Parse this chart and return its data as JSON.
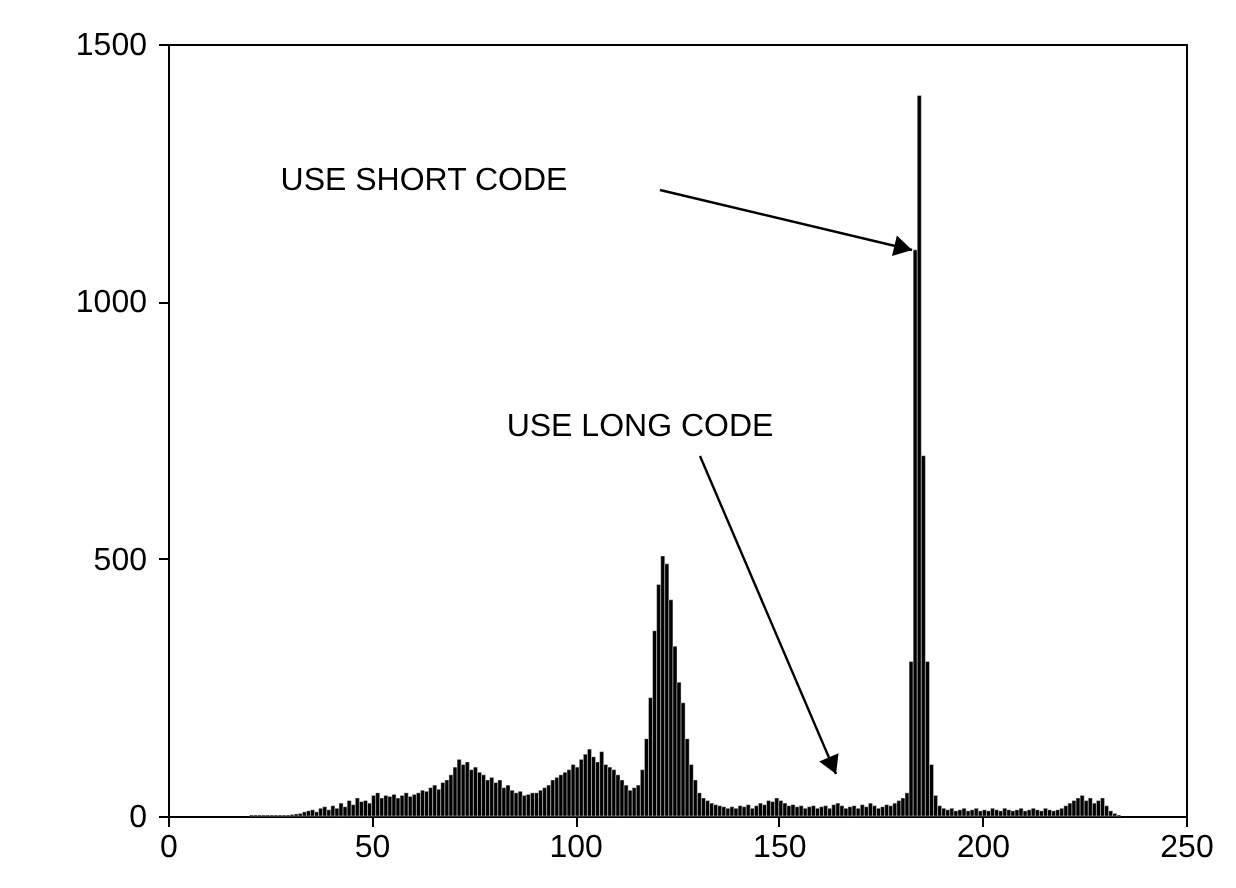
{
  "chart_data": {
    "type": "histogram",
    "bins": [
      20,
      21,
      22,
      23,
      24,
      25,
      26,
      27,
      28,
      29,
      30,
      31,
      32,
      33,
      34,
      35,
      36,
      37,
      38,
      39,
      40,
      41,
      42,
      43,
      44,
      45,
      46,
      47,
      48,
      49,
      50,
      51,
      52,
      53,
      54,
      55,
      56,
      57,
      58,
      59,
      60,
      61,
      62,
      63,
      64,
      65,
      66,
      67,
      68,
      69,
      70,
      71,
      72,
      73,
      74,
      75,
      76,
      77,
      78,
      79,
      80,
      81,
      82,
      83,
      84,
      85,
      86,
      87,
      88,
      89,
      90,
      91,
      92,
      93,
      94,
      95,
      96,
      97,
      98,
      99,
      100,
      101,
      102,
      103,
      104,
      105,
      106,
      107,
      108,
      109,
      110,
      111,
      112,
      113,
      114,
      115,
      116,
      117,
      118,
      119,
      120,
      121,
      122,
      123,
      124,
      125,
      126,
      127,
      128,
      129,
      130,
      131,
      132,
      133,
      134,
      135,
      136,
      137,
      138,
      139,
      140,
      141,
      142,
      143,
      144,
      145,
      146,
      147,
      148,
      149,
      150,
      151,
      152,
      153,
      154,
      155,
      156,
      157,
      158,
      159,
      160,
      161,
      162,
      163,
      164,
      165,
      166,
      167,
      168,
      169,
      170,
      171,
      172,
      173,
      174,
      175,
      176,
      177,
      178,
      179,
      180,
      181,
      182,
      183,
      184,
      185,
      186,
      187,
      188,
      189,
      190,
      191,
      192,
      193,
      194,
      195,
      196,
      197,
      198,
      199,
      200,
      201,
      202,
      203,
      204,
      205,
      206,
      207,
      208,
      209,
      210,
      211,
      212,
      213,
      214,
      215,
      216,
      217,
      218,
      219,
      220,
      221,
      222,
      223,
      224,
      225,
      226,
      227,
      228,
      229,
      230,
      231,
      232,
      233,
      234
    ],
    "values": [
      2,
      2,
      2,
      2,
      2,
      2,
      2,
      2,
      2,
      2,
      3,
      4,
      5,
      8,
      10,
      12,
      8,
      15,
      18,
      12,
      20,
      15,
      25,
      18,
      30,
      22,
      35,
      28,
      30,
      25,
      40,
      45,
      35,
      40,
      38,
      42,
      35,
      40,
      45,
      38,
      42,
      45,
      50,
      48,
      55,
      60,
      52,
      65,
      70,
      80,
      95,
      110,
      100,
      105,
      90,
      95,
      85,
      80,
      70,
      75,
      65,
      70,
      55,
      60,
      50,
      45,
      48,
      40,
      42,
      45,
      45,
      50,
      55,
      60,
      70,
      75,
      80,
      85,
      90,
      100,
      95,
      110,
      120,
      130,
      115,
      105,
      125,
      100,
      95,
      90,
      80,
      70,
      60,
      50,
      55,
      60,
      90,
      150,
      230,
      360,
      450,
      505,
      490,
      420,
      330,
      260,
      220,
      150,
      100,
      70,
      45,
      35,
      30,
      25,
      22,
      20,
      18,
      15,
      18,
      15,
      20,
      18,
      22,
      15,
      20,
      25,
      22,
      30,
      28,
      35,
      30,
      25,
      20,
      22,
      18,
      20,
      15,
      18,
      20,
      15,
      18,
      20,
      15,
      22,
      25,
      20,
      15,
      18,
      20,
      15,
      22,
      18,
      25,
      20,
      15,
      18,
      22,
      20,
      25,
      30,
      35,
      45,
      300,
      1100,
      1400,
      700,
      300,
      100,
      40,
      20,
      15,
      12,
      15,
      10,
      12,
      15,
      10,
      12,
      15,
      10,
      12,
      10,
      15,
      12,
      10,
      15,
      12,
      10,
      12,
      15,
      10,
      12,
      15,
      12,
      10,
      15,
      12,
      10,
      12,
      15,
      20,
      25,
      30,
      35,
      40,
      30,
      35,
      25,
      30,
      35,
      20,
      10,
      5,
      2
    ],
    "color": "#000000",
    "xlim": [
      0,
      250
    ],
    "xticks": [
      0,
      50,
      100,
      150,
      200,
      250
    ],
    "ylim": [
      0,
      1500
    ],
    "yticks": [
      0,
      500,
      1000,
      1500
    ],
    "annotations": [
      "USE SHORT CODE",
      "USE LONG CODE"
    ]
  }
}
